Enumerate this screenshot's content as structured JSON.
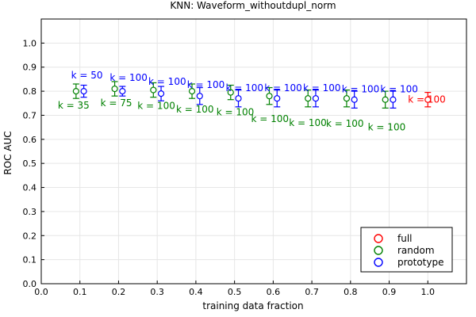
{
  "chart_data": {
    "type": "scatter",
    "title": "KNN: Waveform_withoutdupl_norm",
    "xlabel": "training data fraction",
    "ylabel": "ROC AUC",
    "xlim": [
      0.0,
      1.1
    ],
    "ylim": [
      0.0,
      1.1
    ],
    "xticks": [
      "0.0",
      "0.1",
      "0.2",
      "0.3",
      "0.4",
      "0.5",
      "0.6",
      "0.7",
      "0.8",
      "0.9",
      "1.0"
    ],
    "yticks": [
      "0.0",
      "0.1",
      "0.2",
      "0.3",
      "0.4",
      "0.5",
      "0.6",
      "0.7",
      "0.8",
      "0.9",
      "1.0"
    ],
    "grid": true,
    "legend_position": "bottom-right",
    "series": [
      {
        "name": "full",
        "color": "#ff0000",
        "marker": "open-circle",
        "points": [
          {
            "x": 1.0,
            "y": 0.765,
            "err": 0.03,
            "label": "k = 100"
          }
        ]
      },
      {
        "name": "random",
        "color": "#008000",
        "marker": "open-circle",
        "points": [
          {
            "x": 0.09,
            "y": 0.8,
            "err": 0.03,
            "label": "k = 35"
          },
          {
            "x": 0.19,
            "y": 0.81,
            "err": 0.03,
            "label": "k = 75"
          },
          {
            "x": 0.29,
            "y": 0.805,
            "err": 0.03,
            "label": "k = 100"
          },
          {
            "x": 0.39,
            "y": 0.8,
            "err": 0.03,
            "label": "k = 100"
          },
          {
            "x": 0.49,
            "y": 0.795,
            "err": 0.03,
            "label": "k = 100"
          },
          {
            "x": 0.59,
            "y": 0.78,
            "err": 0.035,
            "label": "k = 100"
          },
          {
            "x": 0.69,
            "y": 0.77,
            "err": 0.035,
            "label": "k = 100"
          },
          {
            "x": 0.79,
            "y": 0.77,
            "err": 0.035,
            "label": "k = 100"
          },
          {
            "x": 0.89,
            "y": 0.765,
            "err": 0.035,
            "label": "k = 100"
          }
        ]
      },
      {
        "name": "prototype",
        "color": "#0000ff",
        "marker": "open-circle",
        "points": [
          {
            "x": 0.11,
            "y": 0.8,
            "err": 0.025,
            "label": "k = 50"
          },
          {
            "x": 0.21,
            "y": 0.8,
            "err": 0.02,
            "label": "k = 100"
          },
          {
            "x": 0.31,
            "y": 0.79,
            "err": 0.03,
            "label": "k = 100"
          },
          {
            "x": 0.41,
            "y": 0.78,
            "err": 0.035,
            "label": "k = 100"
          },
          {
            "x": 0.51,
            "y": 0.77,
            "err": 0.035,
            "label": "k = 100"
          },
          {
            "x": 0.61,
            "y": 0.77,
            "err": 0.035,
            "label": "k = 100"
          },
          {
            "x": 0.71,
            "y": 0.77,
            "err": 0.035,
            "label": "k = 100"
          },
          {
            "x": 0.81,
            "y": 0.765,
            "err": 0.035,
            "label": "k = 100"
          },
          {
            "x": 0.91,
            "y": 0.765,
            "err": 0.035,
            "label": "k = 100"
          }
        ]
      }
    ]
  }
}
